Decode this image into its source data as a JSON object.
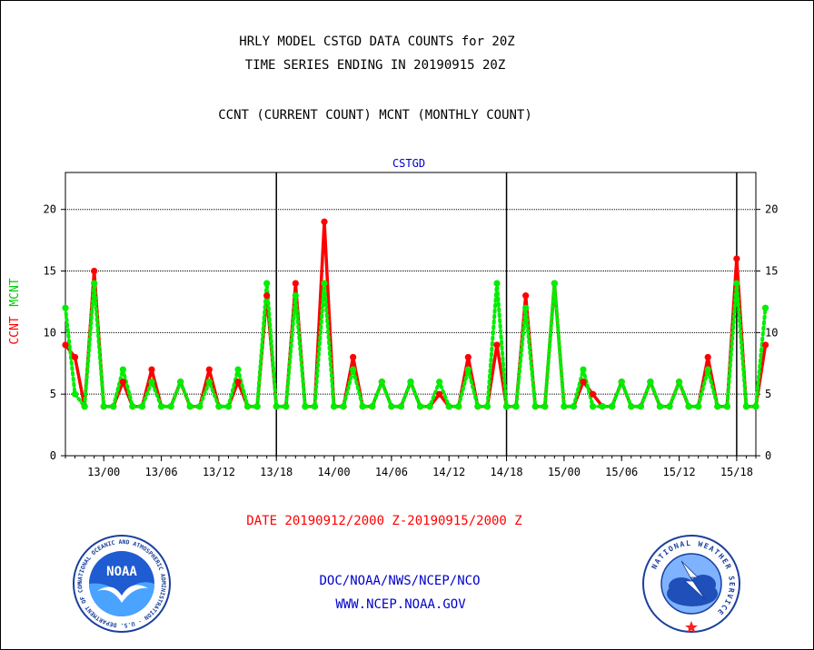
{
  "header": {
    "line1": "HRLY MODEL CSTGD DATA COUNTS for 20Z",
    "line2": "TIME SERIES ENDING IN 20190915 20Z",
    "line3": "CCNT (CURRENT COUNT) MCNT (MONTHLY COUNT)"
  },
  "footer": {
    "date_range": "DATE 20190912/2000 Z-20190915/2000 Z",
    "org": "DOC/NOAA/NWS/NCEP/NCO",
    "url": "WWW.NCEP.NOAA.GOV"
  },
  "logos": {
    "noaa_text": "NOAA",
    "noaa_ring": "NATIONAL OCEANIC AND ATMOSPHERIC ADMINISTRATION · U.S. DEPARTMENT OF COMMERCE",
    "nws_ring": "NATIONAL WEATHER SERVICE"
  },
  "colors": {
    "ccnt": "#ff0000",
    "mcnt": "#00ee00",
    "title_blue": "#0000cc",
    "grid": "#000000"
  },
  "chart_data": {
    "type": "line",
    "title": "CSTGD",
    "ylabel_series_1": "CCNT",
    "ylabel_series_2": "MCNT",
    "ylim": [
      0,
      23
    ],
    "yticks": [
      0,
      5,
      10,
      15,
      20
    ],
    "x_tick_labels": [
      "13/00",
      "13/06",
      "13/12",
      "13/18",
      "14/00",
      "14/06",
      "14/12",
      "14/18",
      "15/00",
      "15/06",
      "15/12",
      "15/18"
    ],
    "x_tick_hours": [
      4,
      10,
      16,
      22,
      28,
      34,
      40,
      46,
      52,
      58,
      64,
      70
    ],
    "day_boundaries_hours": [
      22,
      46,
      70
    ],
    "x_range_hours": [
      0,
      72
    ],
    "series": [
      {
        "name": "CCNT",
        "color": "#ff0000",
        "values": [
          9,
          8,
          4,
          15,
          4,
          4,
          6,
          4,
          4,
          7,
          4,
          4,
          6,
          4,
          4,
          7,
          4,
          4,
          6,
          4,
          4,
          13,
          4,
          4,
          14,
          4,
          4,
          19,
          4,
          4,
          8,
          4,
          4,
          6,
          4,
          4,
          6,
          4,
          4,
          5,
          4,
          4,
          8,
          4,
          4,
          9,
          4,
          4,
          13,
          4,
          4,
          14,
          4,
          4,
          6,
          5,
          4,
          4,
          6,
          4,
          4,
          6,
          4,
          4,
          6,
          4,
          4,
          8,
          4,
          4,
          16,
          4,
          4,
          9
        ]
      },
      {
        "name": "MCNT",
        "color": "#00ee00",
        "values": [
          12,
          5,
          4,
          14,
          4,
          4,
          7,
          4,
          4,
          6,
          4,
          4,
          6,
          4,
          4,
          6,
          4,
          4,
          7,
          4,
          4,
          14,
          4,
          4,
          13,
          4,
          4,
          14,
          4,
          4,
          7,
          4,
          4,
          6,
          4,
          4,
          6,
          4,
          4,
          6,
          4,
          4,
          7,
          4,
          4,
          14,
          4,
          4,
          12,
          4,
          4,
          14,
          4,
          4,
          7,
          4,
          4,
          4,
          6,
          4,
          4,
          6,
          4,
          4,
          6,
          4,
          4,
          7,
          4,
          4,
          14,
          4,
          4,
          12
        ]
      }
    ]
  }
}
